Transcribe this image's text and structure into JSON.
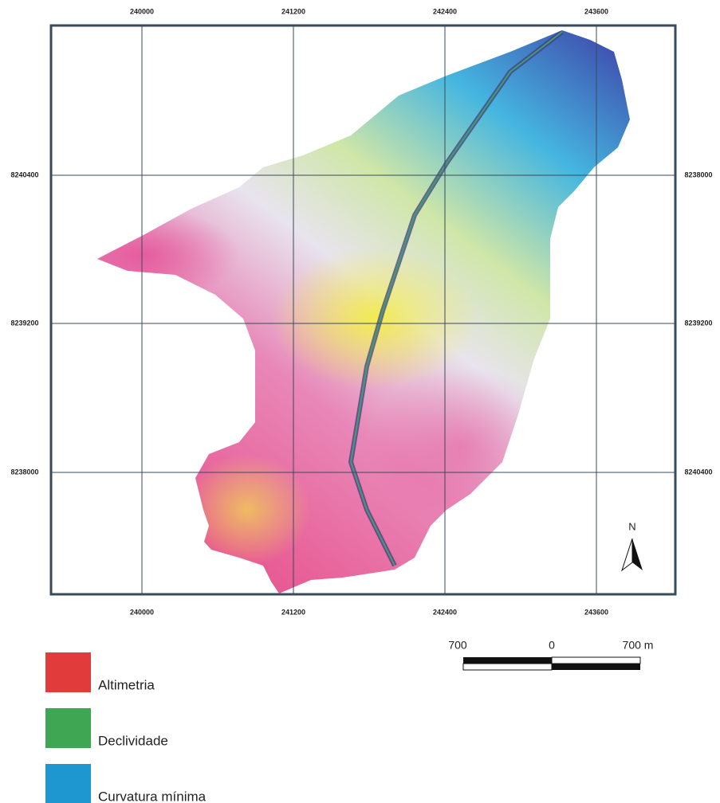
{
  "map": {
    "grid": {
      "top_labels": [
        "240000",
        "241200",
        "242400",
        "243600"
      ],
      "bottom_labels": [
        "240000",
        "241200",
        "242400",
        "243600"
      ],
      "left_labels": [
        "8240400",
        "8239200",
        "8238000"
      ],
      "right_labels": [
        "8238000",
        "8239200",
        "8240400"
      ]
    },
    "north": "N",
    "scale_bar": {
      "labels": [
        "700",
        "0",
        "700 m"
      ]
    },
    "legend": [
      {
        "label": "Altimetria",
        "color": "#e23b3c"
      },
      {
        "label": "Declividade",
        "color": "#3fa653"
      },
      {
        "label": "Curvatura mínima",
        "color": "#1e96cf"
      }
    ]
  }
}
